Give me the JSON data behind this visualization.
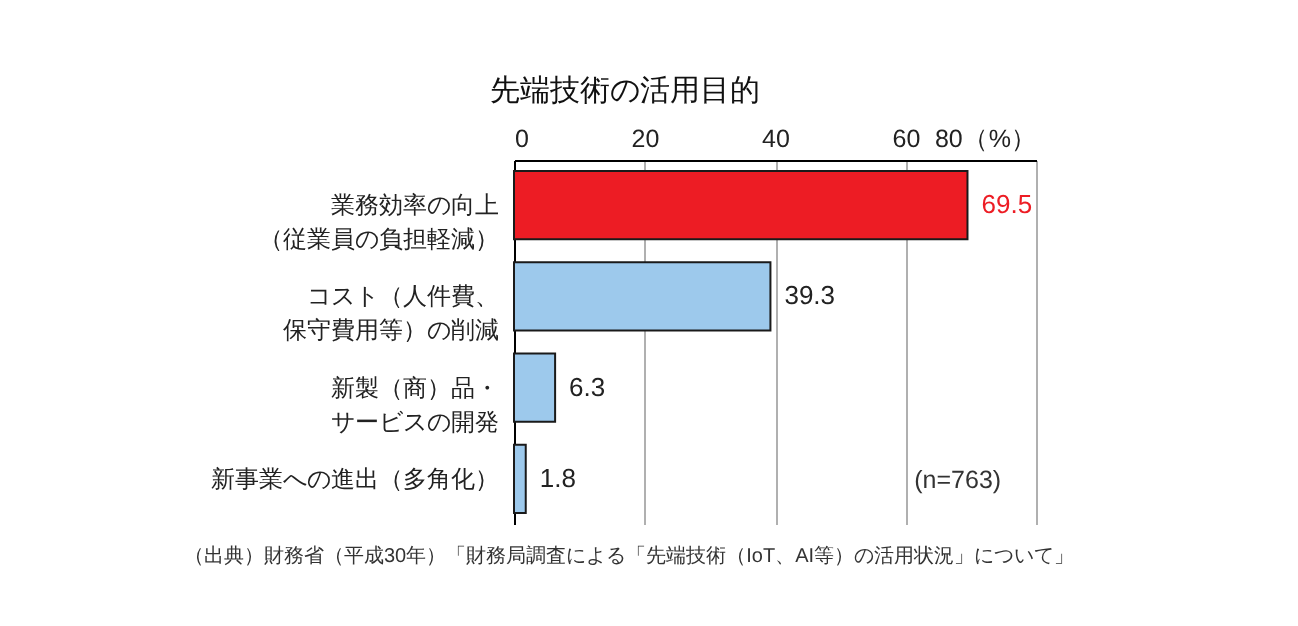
{
  "chart_data": {
    "type": "bar",
    "orientation": "horizontal",
    "title": "先端技術の活用目的",
    "categories": [
      "業務効率の向上（従業員の負担軽減）",
      "コスト（人件費、保守費用等）の削減",
      "新製（商）品・サービスの開発",
      "新事業への進出（多角化）"
    ],
    "values": [
      69.5,
      39.3,
      6.3,
      1.8
    ],
    "colors": [
      "#ed1c24",
      "#9dc9ec",
      "#9dc9ec",
      "#9dc9ec"
    ],
    "xlim": [
      0,
      80
    ],
    "xticks": [
      0,
      20,
      40,
      60,
      {
        "value": 80,
        "label": "80（%）"
      }
    ],
    "grid": "x",
    "data_labels": true,
    "annotations": [
      "(n=763)",
      "（出典）財務省（平成30年）「財務局調査による「先端技術（IoT、AI等）の活用状況」について」"
    ]
  }
}
